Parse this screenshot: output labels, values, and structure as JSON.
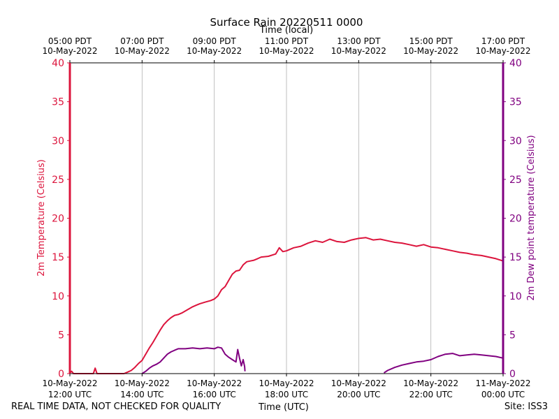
{
  "chart_data": {
    "type": "line",
    "title": "Surface Rain 20220511 0000",
    "top_axis_label": "Time (local)",
    "xlabel": "Time (UTC)",
    "ylabel_left": "2m Temperature (Celsius)",
    "ylabel_right": "2m Dew point temperature (Celsius)",
    "ylim": [
      0,
      40
    ],
    "y_ticks": [
      0,
      5,
      10,
      15,
      20,
      25,
      30,
      35,
      40
    ],
    "x_range_hours": [
      12,
      24
    ],
    "grid": "vertical",
    "bottom_ticks": [
      {
        "hour": 12,
        "line1": "10-May-2022",
        "line2": "12:00 UTC"
      },
      {
        "hour": 14,
        "line1": "10-May-2022",
        "line2": "14:00 UTC"
      },
      {
        "hour": 16,
        "line1": "10-May-2022",
        "line2": "16:00 UTC"
      },
      {
        "hour": 18,
        "line1": "10-May-2022",
        "line2": "18:00 UTC"
      },
      {
        "hour": 20,
        "line1": "10-May-2022",
        "line2": "20:00 UTC"
      },
      {
        "hour": 22,
        "line1": "10-May-2022",
        "line2": "22:00 UTC"
      },
      {
        "hour": 24,
        "line1": "11-May-2022",
        "line2": "00:00 UTC"
      }
    ],
    "top_ticks": [
      {
        "hour": 12,
        "line1": "05:00 PDT",
        "line2": "10-May-2022"
      },
      {
        "hour": 14,
        "line1": "07:00 PDT",
        "line2": "10-May-2022"
      },
      {
        "hour": 16,
        "line1": "09:00 PDT",
        "line2": "10-May-2022"
      },
      {
        "hour": 18,
        "line1": "11:00 PDT",
        "line2": "10-May-2022"
      },
      {
        "hour": 20,
        "line1": "13:00 PDT",
        "line2": "10-May-2022"
      },
      {
        "hour": 22,
        "line1": "15:00 PDT",
        "line2": "10-May-2022"
      },
      {
        "hour": 24,
        "line1": "17:00 PDT",
        "line2": "10-May-2022"
      }
    ],
    "series": [
      {
        "name": "2m Temperature",
        "color": "#dc143c",
        "x": [
          12.0,
          12.05,
          12.1,
          12.4,
          12.65,
          12.7,
          12.75,
          13.0,
          13.5,
          13.6,
          13.7,
          13.8,
          13.9,
          14.0,
          14.1,
          14.2,
          14.3,
          14.4,
          14.5,
          14.6,
          14.7,
          14.8,
          14.9,
          15.0,
          15.1,
          15.25,
          15.4,
          15.5,
          15.6,
          15.75,
          15.9,
          16.0,
          16.1,
          16.2,
          16.3,
          16.4,
          16.5,
          16.6,
          16.7,
          16.8,
          16.9,
          17.0,
          17.1,
          17.2,
          17.3,
          17.5,
          17.7,
          17.8,
          17.9,
          18.0,
          18.2,
          18.4,
          18.6,
          18.8,
          19.0,
          19.2,
          19.4,
          19.6,
          19.8,
          20.0,
          20.2,
          20.4,
          20.6,
          20.8,
          21.0,
          21.2,
          21.4,
          21.6,
          21.8,
          22.0,
          22.2,
          22.4,
          22.6,
          22.8,
          23.0,
          23.2,
          23.4,
          23.6,
          23.8,
          24.0
        ],
        "values": [
          0.1,
          0.3,
          0.0,
          0.0,
          0.0,
          0.7,
          0.0,
          0.0,
          0.0,
          0.2,
          0.4,
          0.8,
          1.3,
          1.7,
          2.5,
          3.3,
          4.0,
          4.8,
          5.6,
          6.3,
          6.8,
          7.2,
          7.5,
          7.6,
          7.8,
          8.2,
          8.6,
          8.8,
          9.0,
          9.2,
          9.4,
          9.6,
          10.0,
          10.8,
          11.2,
          12.0,
          12.8,
          13.2,
          13.3,
          14.0,
          14.4,
          14.5,
          14.6,
          14.8,
          15.0,
          15.1,
          15.4,
          16.2,
          15.7,
          15.8,
          16.2,
          16.4,
          16.8,
          17.1,
          16.9,
          17.3,
          17.0,
          16.9,
          17.2,
          17.4,
          17.5,
          17.2,
          17.3,
          17.1,
          16.9,
          16.8,
          16.6,
          16.4,
          16.6,
          16.3,
          16.2,
          16.0,
          15.8,
          15.6,
          15.5,
          15.3,
          15.2,
          15.0,
          14.8,
          14.5
        ]
      },
      {
        "name": "2m Dew point temperature",
        "color": "#800080",
        "x": [
          14.0,
          14.1,
          14.2,
          14.3,
          14.4,
          14.5,
          14.6,
          14.7,
          14.8,
          14.9,
          15.0,
          15.2,
          15.4,
          15.6,
          15.8,
          16.0,
          16.1,
          16.2,
          16.3,
          16.4,
          16.5,
          16.6,
          16.65,
          16.7,
          16.75,
          16.8,
          16.84,
          16.85,
          null,
          20.7,
          20.8,
          21.0,
          21.2,
          21.4,
          21.6,
          21.8,
          22.0,
          22.2,
          22.4,
          22.6,
          22.8,
          23.0,
          23.2,
          23.4,
          23.6,
          23.8,
          24.0
        ],
        "values": [
          0.0,
          0.3,
          0.7,
          1.0,
          1.2,
          1.5,
          2.0,
          2.5,
          2.8,
          3.0,
          3.2,
          3.2,
          3.3,
          3.2,
          3.3,
          3.2,
          3.4,
          3.3,
          2.5,
          2.1,
          1.8,
          1.5,
          3.1,
          2.0,
          1.0,
          1.8,
          0.9,
          0.3,
          null,
          0.1,
          0.4,
          0.8,
          1.1,
          1.3,
          1.5,
          1.6,
          1.8,
          2.2,
          2.5,
          2.6,
          2.3,
          2.4,
          2.5,
          2.4,
          2.3,
          2.2,
          2.0
        ]
      }
    ]
  },
  "footer": {
    "disclaimer": "REAL TIME DATA, NOT CHECKED FOR QUALITY",
    "site": "Site: ISS3",
    "xlabel": "Time (UTC)"
  }
}
